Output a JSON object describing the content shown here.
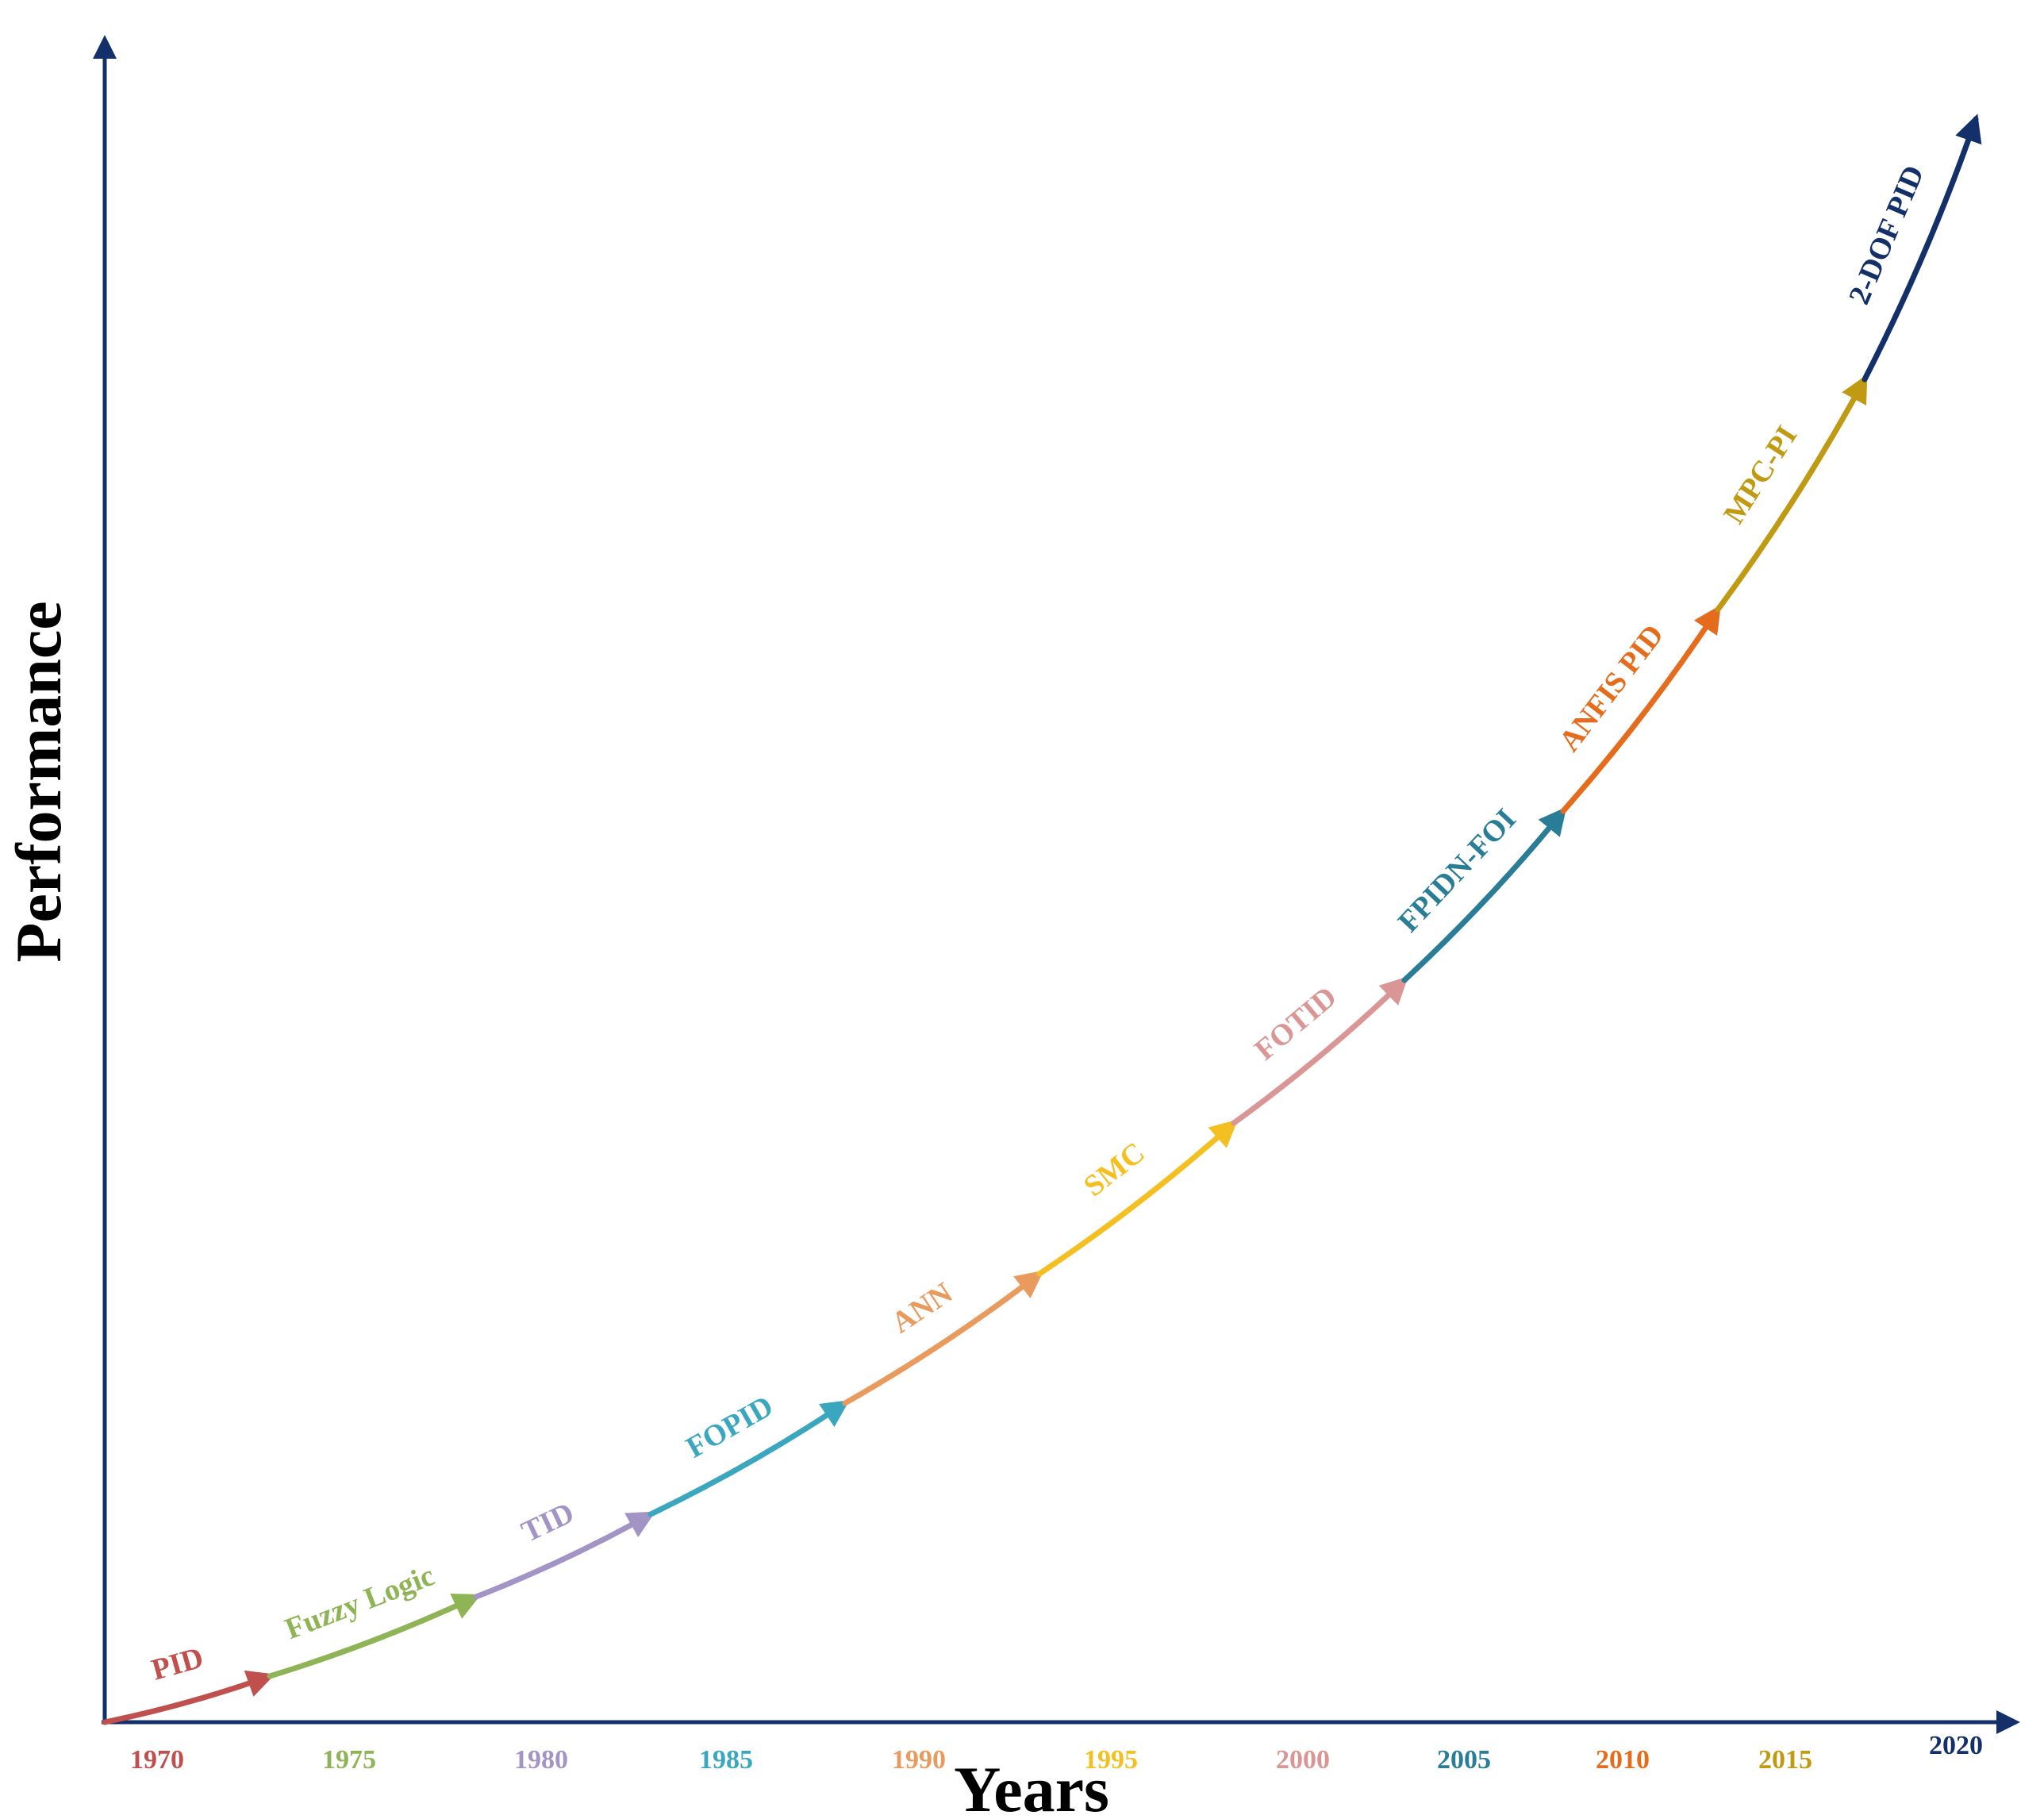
{
  "axes": {
    "x_title": "Years",
    "y_title": "Performance",
    "color": "#14306b"
  },
  "years": [
    {
      "label": "1970",
      "color": "#c0504d"
    },
    {
      "label": "1975",
      "color": "#8fb456"
    },
    {
      "label": "1980",
      "color": "#a394c6"
    },
    {
      "label": "1985",
      "color": "#3ba7bf"
    },
    {
      "label": "1990",
      "color": "#e99a5d"
    },
    {
      "label": "1995",
      "color": "#f4c021"
    },
    {
      "label": "2000",
      "color": "#d99694"
    },
    {
      "label": "2005",
      "color": "#2a7d97"
    },
    {
      "label": "2010",
      "color": "#e46c1c"
    },
    {
      "label": "2015",
      "color": "#c09a12"
    },
    {
      "label": "2020",
      "color": "#14306b"
    }
  ],
  "segments": [
    {
      "label": "PID",
      "color": "#c0504d"
    },
    {
      "label": "Fuzzy Logic",
      "color": "#8fb456"
    },
    {
      "label": "TID",
      "color": "#a394c6"
    },
    {
      "label": "FOPID",
      "color": "#3ba7bf"
    },
    {
      "label": "ANN",
      "color": "#e99a5d"
    },
    {
      "label": "SMC",
      "color": "#f4c021"
    },
    {
      "label": "FOTID",
      "color": "#d99694"
    },
    {
      "label": "FPIDN-FOI",
      "color": "#2a7d97"
    },
    {
      "label": "ANFIS PID",
      "color": "#e46c1c"
    },
    {
      "label": "MPC-PI",
      "color": "#c09a12"
    },
    {
      "label": "2-DOF PID",
      "color": "#14306b"
    }
  ]
}
